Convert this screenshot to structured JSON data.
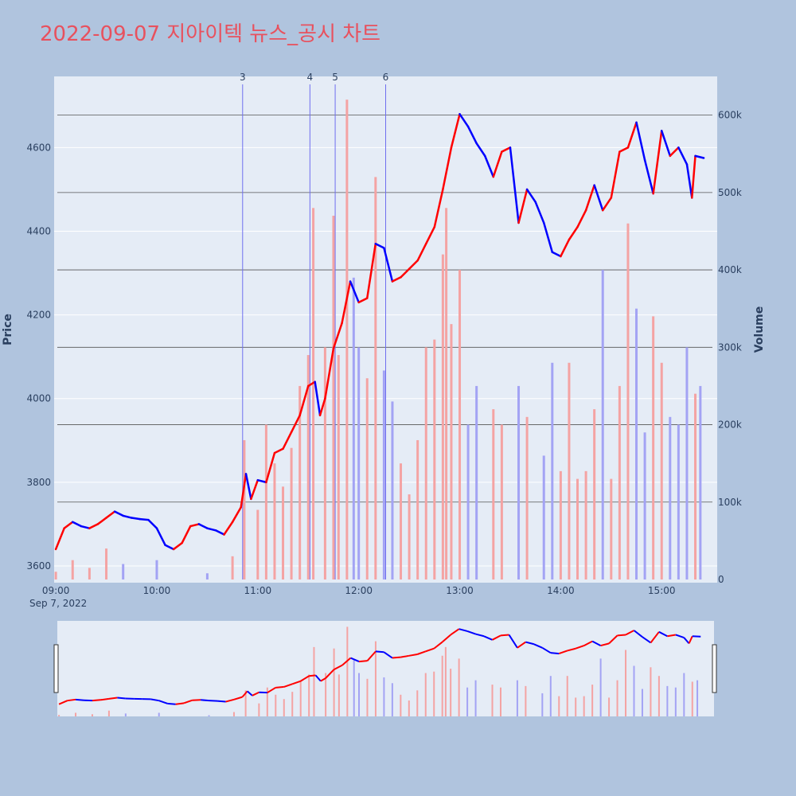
{
  "chart_data": {
    "type": "candlestick",
    "title": "2022-09-07 지아이텍 뉴스_공시 차트",
    "date_label": "Sep 7, 2022",
    "price_axis": {
      "title": "Price",
      "range": [
        3560,
        4770
      ],
      "ticks": [
        3600,
        3800,
        4000,
        4200,
        4400,
        4600
      ]
    },
    "volume_axis": {
      "title": "Volume",
      "range": [
        0,
        650000
      ],
      "ticks": [
        0,
        100000,
        200000,
        300000,
        400000,
        500000,
        600000
      ],
      "tick_labels": [
        "0",
        "100k",
        "200k",
        "300k",
        "400k",
        "500k",
        "600k"
      ]
    },
    "time_axis": {
      "range": [
        "08:59",
        "15:33"
      ],
      "ticks": [
        "09:00",
        "10:00",
        "11:00",
        "12:00",
        "13:00",
        "14:00",
        "15:00"
      ]
    },
    "colors": {
      "up": "#ff0000",
      "down": "#0000ff",
      "up_volume": "#f4a3a3",
      "down_volume": "#a3a3f4",
      "event_line": "#6f6ff0",
      "title": "#e8515e"
    },
    "news_markers": [
      {
        "label": "3",
        "time": "10:51"
      },
      {
        "label": "4",
        "time": "11:31"
      },
      {
        "label": "5",
        "time": "11:46"
      },
      {
        "label": "6",
        "time": "12:16"
      }
    ],
    "price_path": [
      [
        "09:00",
        3640
      ],
      [
        "09:05",
        3690
      ],
      [
        "09:10",
        3705
      ],
      [
        "09:15",
        3695
      ],
      [
        "09:20",
        3690
      ],
      [
        "09:25",
        3700
      ],
      [
        "09:30",
        3715
      ],
      [
        "09:35",
        3730
      ],
      [
        "09:40",
        3720
      ],
      [
        "09:45",
        3715
      ],
      [
        "09:50",
        3712
      ],
      [
        "09:55",
        3710
      ],
      [
        "10:00",
        3690
      ],
      [
        "10:05",
        3650
      ],
      [
        "10:10",
        3640
      ],
      [
        "10:15",
        3655
      ],
      [
        "10:20",
        3695
      ],
      [
        "10:25",
        3700
      ],
      [
        "10:30",
        3690
      ],
      [
        "10:35",
        3685
      ],
      [
        "10:40",
        3675
      ],
      [
        "10:45",
        3705
      ],
      [
        "10:50",
        3740
      ],
      [
        "10:53",
        3820
      ],
      [
        "10:56",
        3760
      ],
      [
        "11:00",
        3805
      ],
      [
        "11:05",
        3800
      ],
      [
        "11:10",
        3870
      ],
      [
        "11:15",
        3880
      ],
      [
        "11:20",
        3920
      ],
      [
        "11:25",
        3960
      ],
      [
        "11:30",
        4030
      ],
      [
        "11:34",
        4040
      ],
      [
        "11:37",
        3960
      ],
      [
        "11:40",
        4000
      ],
      [
        "11:45",
        4120
      ],
      [
        "11:50",
        4180
      ],
      [
        "11:55",
        4280
      ],
      [
        "12:00",
        4230
      ],
      [
        "12:05",
        4240
      ],
      [
        "12:10",
        4370
      ],
      [
        "12:15",
        4360
      ],
      [
        "12:20",
        4280
      ],
      [
        "12:25",
        4290
      ],
      [
        "12:30",
        4310
      ],
      [
        "12:35",
        4330
      ],
      [
        "12:40",
        4370
      ],
      [
        "12:45",
        4410
      ],
      [
        "12:50",
        4500
      ],
      [
        "12:55",
        4600
      ],
      [
        "13:00",
        4680
      ],
      [
        "13:05",
        4650
      ],
      [
        "13:10",
        4610
      ],
      [
        "13:15",
        4580
      ],
      [
        "13:20",
        4530
      ],
      [
        "13:25",
        4590
      ],
      [
        "13:30",
        4600
      ],
      [
        "13:35",
        4420
      ],
      [
        "13:40",
        4500
      ],
      [
        "13:45",
        4470
      ],
      [
        "13:50",
        4420
      ],
      [
        "13:55",
        4350
      ],
      [
        "14:00",
        4340
      ],
      [
        "14:05",
        4380
      ],
      [
        "14:10",
        4410
      ],
      [
        "14:15",
        4450
      ],
      [
        "14:20",
        4510
      ],
      [
        "14:25",
        4450
      ],
      [
        "14:30",
        4480
      ],
      [
        "14:35",
        4590
      ],
      [
        "14:40",
        4600
      ],
      [
        "14:45",
        4660
      ],
      [
        "14:50",
        4570
      ],
      [
        "14:55",
        4490
      ],
      [
        "15:00",
        4640
      ],
      [
        "15:05",
        4580
      ],
      [
        "15:10",
        4600
      ],
      [
        "15:15",
        4560
      ],
      [
        "15:18",
        4480
      ],
      [
        "15:20",
        4580
      ],
      [
        "15:25",
        4575
      ]
    ],
    "volume_bars": [
      [
        "09:00",
        10000
      ],
      [
        "09:10",
        25000
      ],
      [
        "09:20",
        15000
      ],
      [
        "09:30",
        40000
      ],
      [
        "09:40",
        20000
      ],
      [
        "10:00",
        25000
      ],
      [
        "10:30",
        8000
      ],
      [
        "10:45",
        30000
      ],
      [
        "10:52",
        180000
      ],
      [
        "11:00",
        90000
      ],
      [
        "11:05",
        200000
      ],
      [
        "11:10",
        150000
      ],
      [
        "11:15",
        120000
      ],
      [
        "11:20",
        170000
      ],
      [
        "11:25",
        250000
      ],
      [
        "11:30",
        290000
      ],
      [
        "11:33",
        480000
      ],
      [
        "11:40",
        300000
      ],
      [
        "11:45",
        470000
      ],
      [
        "11:48",
        290000
      ],
      [
        "11:53",
        620000
      ],
      [
        "11:57",
        390000
      ],
      [
        "12:00",
        300000
      ],
      [
        "12:05",
        260000
      ],
      [
        "12:10",
        520000
      ],
      [
        "12:15",
        270000
      ],
      [
        "12:20",
        230000
      ],
      [
        "12:25",
        150000
      ],
      [
        "12:30",
        110000
      ],
      [
        "12:35",
        180000
      ],
      [
        "12:40",
        300000
      ],
      [
        "12:45",
        310000
      ],
      [
        "12:50",
        420000
      ],
      [
        "12:52",
        480000
      ],
      [
        "12:55",
        330000
      ],
      [
        "13:00",
        400000
      ],
      [
        "13:05",
        200000
      ],
      [
        "13:10",
        250000
      ],
      [
        "13:20",
        220000
      ],
      [
        "13:25",
        200000
      ],
      [
        "13:35",
        250000
      ],
      [
        "13:40",
        210000
      ],
      [
        "13:50",
        160000
      ],
      [
        "13:55",
        280000
      ],
      [
        "14:00",
        140000
      ],
      [
        "14:05",
        280000
      ],
      [
        "14:10",
        130000
      ],
      [
        "14:15",
        140000
      ],
      [
        "14:20",
        220000
      ],
      [
        "14:25",
        400000
      ],
      [
        "14:30",
        130000
      ],
      [
        "14:35",
        250000
      ],
      [
        "14:40",
        460000
      ],
      [
        "14:45",
        350000
      ],
      [
        "14:50",
        190000
      ],
      [
        "14:55",
        340000
      ],
      [
        "15:00",
        280000
      ],
      [
        "15:05",
        210000
      ],
      [
        "15:10",
        200000
      ],
      [
        "15:15",
        300000
      ],
      [
        "15:20",
        240000
      ],
      [
        "15:23",
        250000
      ]
    ]
  }
}
